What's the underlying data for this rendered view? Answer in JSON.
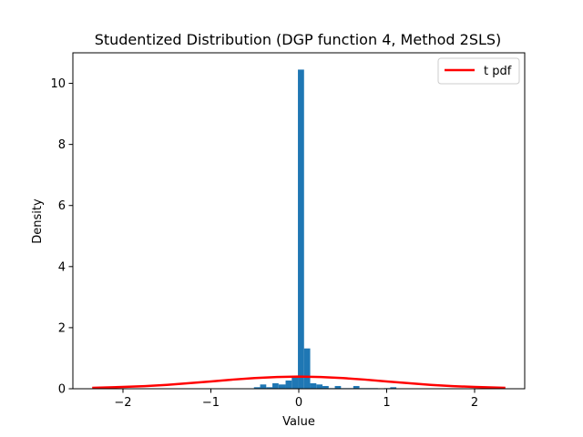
{
  "chart_data": {
    "type": "bar",
    "title": "Studentized Distribution (DGP function 4, Method 2SLS)",
    "xlabel": "Value",
    "ylabel": "Density",
    "xlim": [
      -2.57,
      2.57
    ],
    "ylim": [
      0,
      11
    ],
    "xticks": [
      -2,
      -1,
      0,
      1,
      2
    ],
    "xtick_labels": [
      "−2",
      "−1",
      "0",
      "1",
      "2"
    ],
    "yticks": [
      0,
      2,
      4,
      6,
      8,
      10
    ],
    "ytick_labels": [
      "0",
      "2",
      "4",
      "6",
      "8",
      "10"
    ],
    "grid": false,
    "legend": {
      "position": "top-right",
      "entries": [
        "t pdf"
      ]
    },
    "colors": {
      "histogram": "#1f77b4",
      "pdf": "#ff0000"
    },
    "histogram": {
      "name": "",
      "bins": [
        {
          "x0": -0.51,
          "x1": -0.44,
          "density": 0.05
        },
        {
          "x0": -0.44,
          "x1": -0.37,
          "density": 0.14
        },
        {
          "x0": -0.37,
          "x1": -0.3,
          "density": 0.05
        },
        {
          "x0": -0.3,
          "x1": -0.23,
          "density": 0.18
        },
        {
          "x0": -0.23,
          "x1": -0.15,
          "density": 0.14
        },
        {
          "x0": -0.15,
          "x1": -0.08,
          "density": 0.27
        },
        {
          "x0": -0.08,
          "x1": -0.01,
          "density": 0.41
        },
        {
          "x0": -0.01,
          "x1": 0.06,
          "density": 10.45
        },
        {
          "x0": 0.06,
          "x1": 0.13,
          "density": 1.32
        },
        {
          "x0": 0.13,
          "x1": 0.2,
          "density": 0.18
        },
        {
          "x0": 0.2,
          "x1": 0.27,
          "density": 0.14
        },
        {
          "x0": 0.27,
          "x1": 0.34,
          "density": 0.09
        },
        {
          "x0": 0.34,
          "x1": 0.41,
          "density": 0.02
        },
        {
          "x0": 0.41,
          "x1": 0.48,
          "density": 0.09
        },
        {
          "x0": 0.48,
          "x1": 0.55,
          "density": 0.02
        },
        {
          "x0": 0.55,
          "x1": 0.62,
          "density": 0.02
        },
        {
          "x0": 0.62,
          "x1": 0.69,
          "density": 0.09
        },
        {
          "x0": 0.69,
          "x1": 0.76,
          "density": 0.02
        },
        {
          "x0": 0.76,
          "x1": 0.83,
          "density": 0.02
        },
        {
          "x0": 0.83,
          "x1": 0.9,
          "density": 0.02
        },
        {
          "x0": 0.97,
          "x1": 1.04,
          "density": 0.02
        },
        {
          "x0": 1.04,
          "x1": 1.11,
          "density": 0.05
        }
      ]
    },
    "series": [
      {
        "name": "t pdf",
        "type": "line",
        "x": [
          -2.35,
          -2.0,
          -1.75,
          -1.5,
          -1.25,
          -1.0,
          -0.75,
          -0.5,
          -0.25,
          0.0,
          0.25,
          0.5,
          0.75,
          1.0,
          1.25,
          1.5,
          1.75,
          2.0,
          2.35
        ],
        "y": [
          0.031,
          0.058,
          0.087,
          0.128,
          0.181,
          0.24,
          0.3,
          0.35,
          0.385,
          0.397,
          0.385,
          0.35,
          0.3,
          0.24,
          0.181,
          0.128,
          0.087,
          0.058,
          0.031
        ]
      }
    ]
  }
}
